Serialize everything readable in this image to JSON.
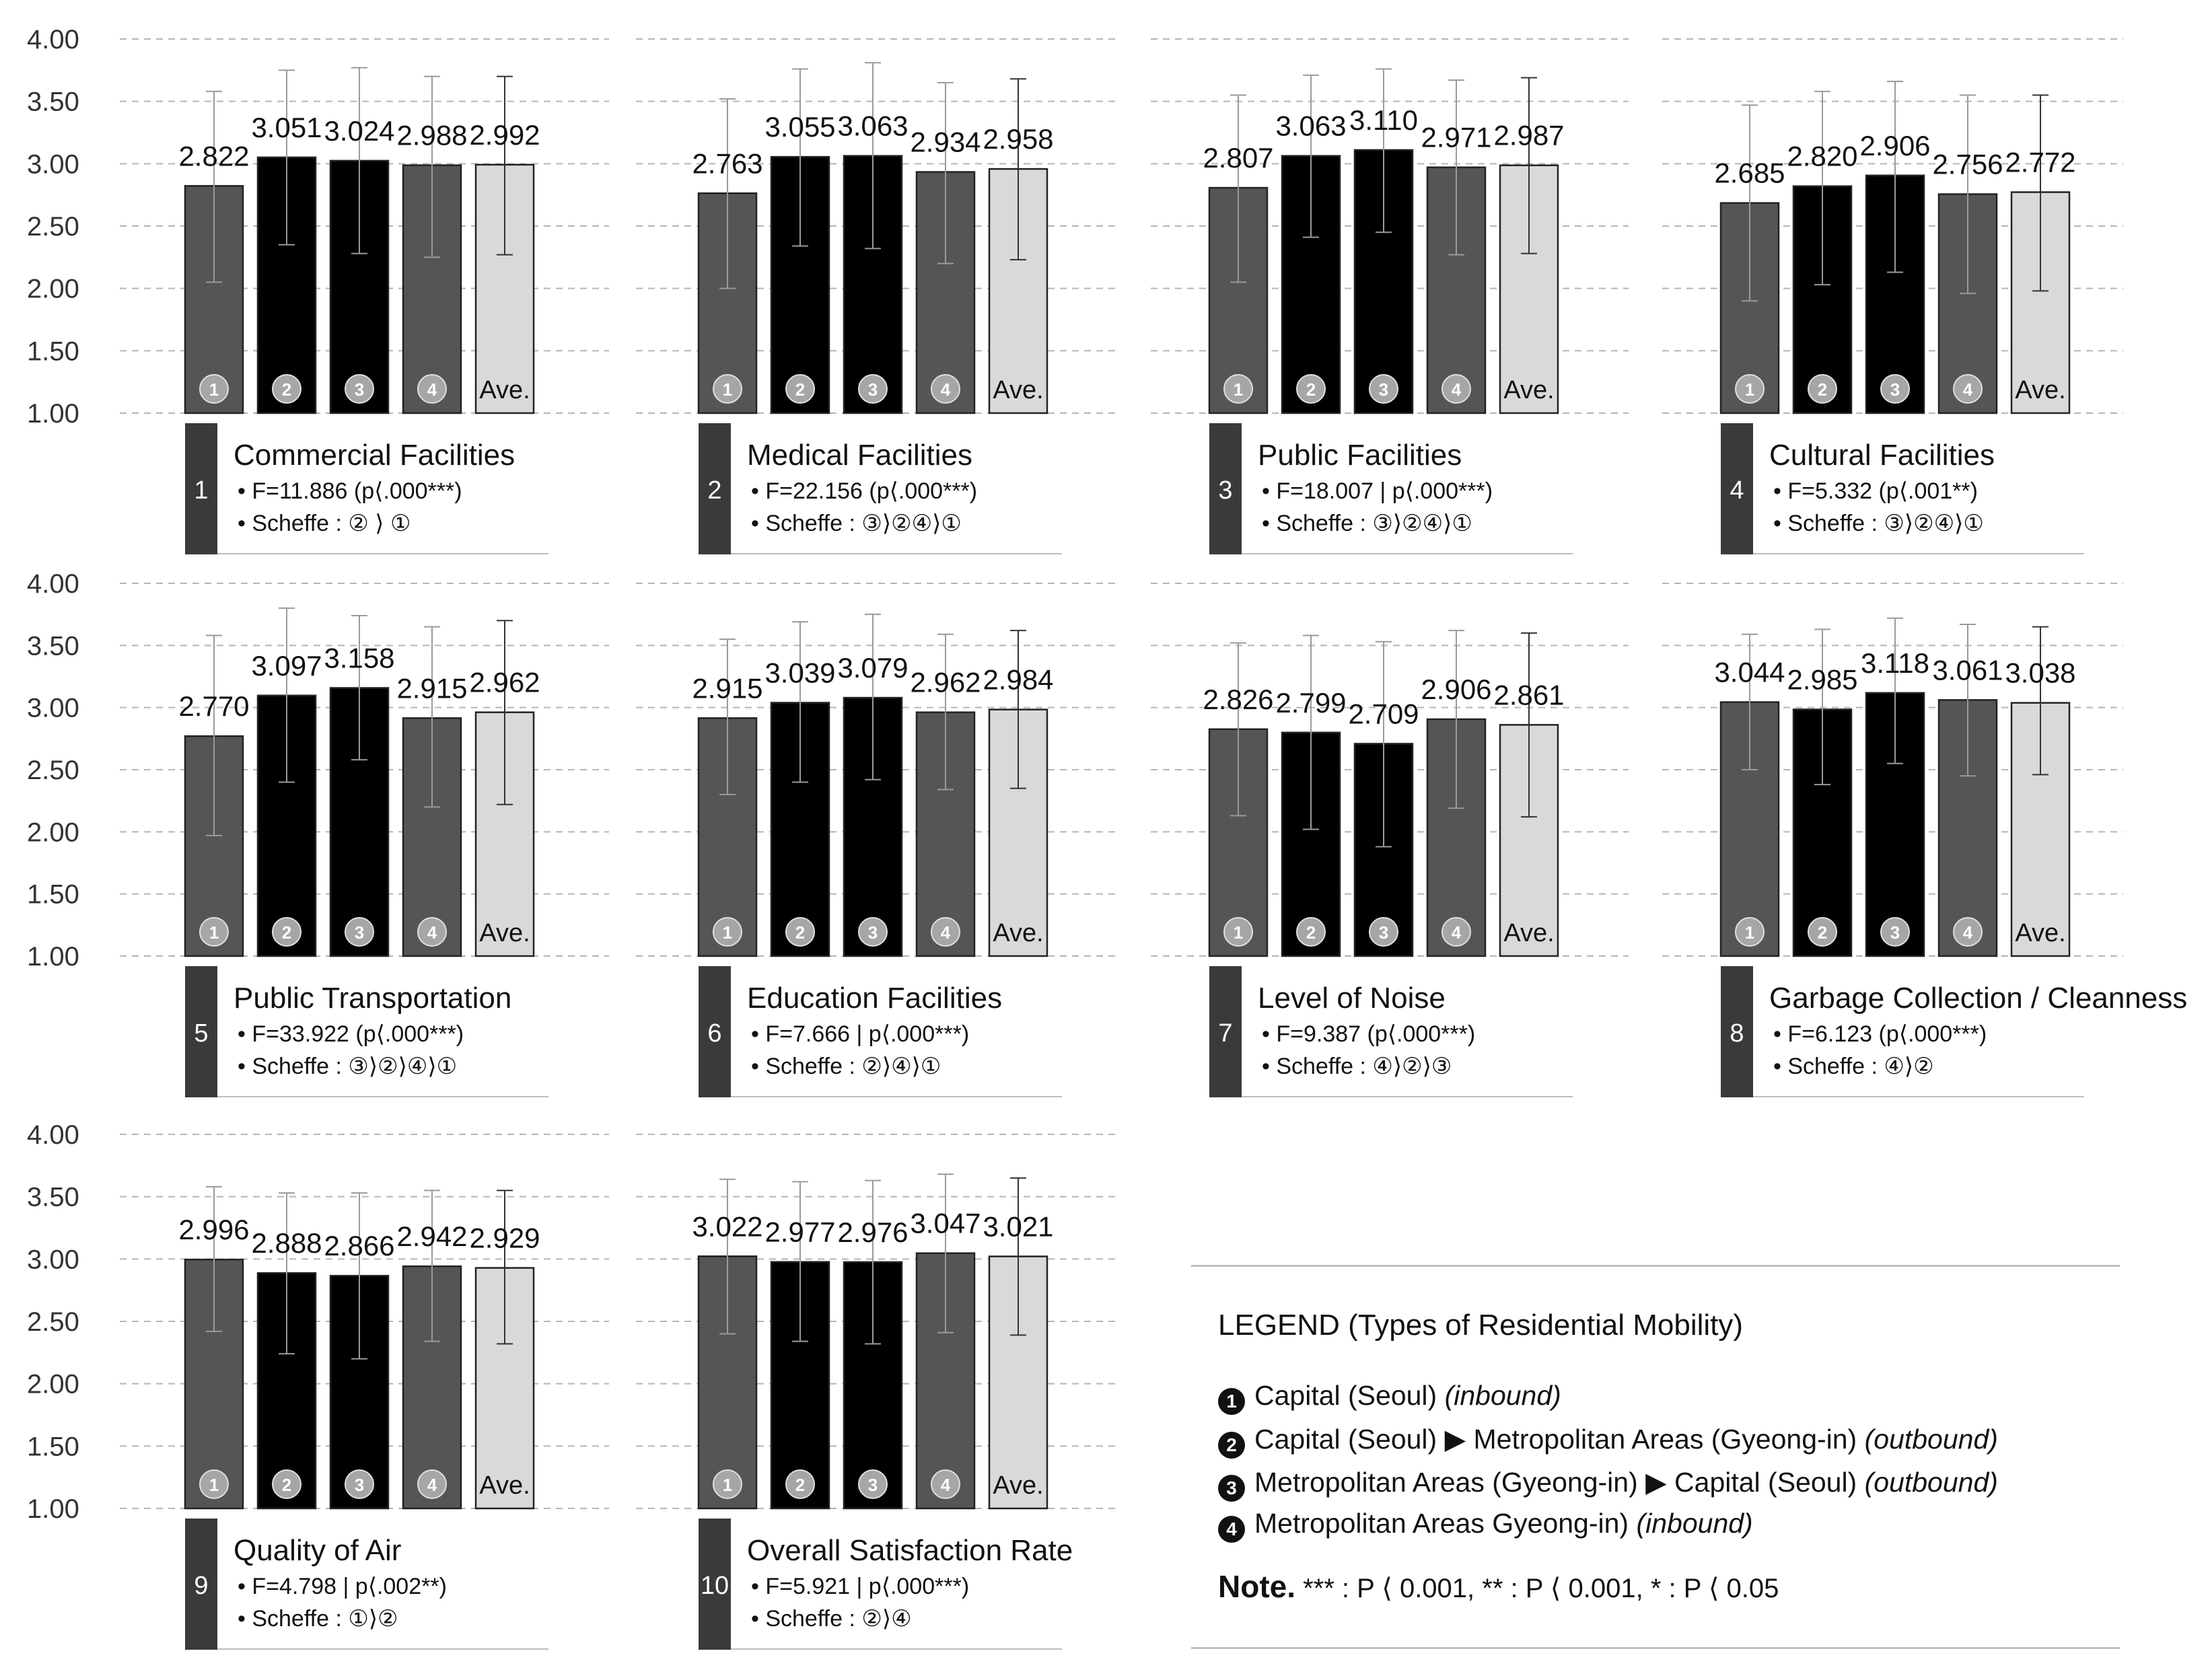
{
  "chart_data": {
    "type": "bar",
    "y_axis": {
      "ylim": [
        1.0,
        4.0
      ],
      "ticks": [
        "4.00",
        "3.50",
        "3.00",
        "2.50",
        "2.00",
        "1.50",
        "1.00"
      ],
      "grid": true
    },
    "category_labels": [
      "①",
      "②",
      "③",
      "④",
      "Ave."
    ],
    "colors": [
      "#555555",
      "#000000",
      "#000000",
      "#555555",
      "#d9d9d9"
    ],
    "panels": [
      {
        "number": "1",
        "title": "Commercial Facilities",
        "stat": "• F=11.886 (p⟨.000***)",
        "scheffe": "• Scheffe : ② ⟩ ①",
        "values": [
          2.822,
          3.051,
          3.024,
          2.988,
          2.992
        ],
        "labels": [
          "2.822",
          "3.051",
          "3.024",
          "2.988",
          "2.992"
        ],
        "err_hi": [
          3.58,
          3.75,
          3.77,
          3.7,
          3.7
        ],
        "err_lo": [
          2.05,
          2.35,
          2.28,
          2.25,
          2.27
        ]
      },
      {
        "number": "2",
        "title": "Medical Facilities",
        "stat": "• F=22.156 (p⟨.000***)",
        "scheffe": "• Scheffe : ③⟩②④⟩①",
        "values": [
          2.763,
          3.055,
          3.063,
          2.934,
          2.958
        ],
        "labels": [
          "2.763",
          "3.055",
          "3.063",
          "2.934",
          "2.958"
        ],
        "err_hi": [
          3.52,
          3.76,
          3.81,
          3.65,
          3.68
        ],
        "err_lo": [
          2.0,
          2.34,
          2.32,
          2.2,
          2.23
        ]
      },
      {
        "number": "3",
        "title": "Public Facilities",
        "stat": "• F=18.007 | p⟨.000***)",
        "scheffe": "• Scheffe : ③⟩②④⟩①",
        "values": [
          2.807,
          3.063,
          3.11,
          2.971,
          2.987
        ],
        "labels": [
          "2.807",
          "3.063",
          "3.110",
          "2.971",
          "2.987"
        ],
        "err_hi": [
          3.55,
          3.71,
          3.76,
          3.67,
          3.69
        ],
        "err_lo": [
          2.05,
          2.41,
          2.45,
          2.27,
          2.28
        ]
      },
      {
        "number": "4",
        "title": "Cultural Facilities",
        "stat": "• F=5.332 (p⟨.001**)",
        "scheffe": "• Scheffe : ③⟩②④⟩①",
        "values": [
          2.685,
          2.82,
          2.906,
          2.756,
          2.772
        ],
        "labels": [
          "2.685",
          "2.820",
          "2.906",
          "2.756",
          "2.772"
        ],
        "err_hi": [
          3.47,
          3.58,
          3.66,
          3.55,
          3.55
        ],
        "err_lo": [
          1.9,
          2.03,
          2.13,
          1.96,
          1.98
        ]
      },
      {
        "number": "5",
        "title": "Public Transportation",
        "stat": "• F=33.922 (p⟨.000***)",
        "scheffe": "• Scheffe : ③⟩②⟩④⟩①",
        "values": [
          2.77,
          3.097,
          3.158,
          2.915,
          2.962
        ],
        "labels": [
          "2.770",
          "3.097",
          "3.158",
          "2.915",
          "2.962"
        ],
        "err_hi": [
          3.58,
          3.8,
          3.74,
          3.65,
          3.7
        ],
        "err_lo": [
          1.97,
          2.4,
          2.58,
          2.2,
          2.22
        ]
      },
      {
        "number": "6",
        "title": "Education Facilities",
        "stat": "• F=7.666 | p⟨.000***)",
        "scheffe": "• Scheffe : ②⟩④⟩①",
        "values": [
          2.915,
          3.039,
          3.079,
          2.962,
          2.984
        ],
        "labels": [
          "2.915",
          "3.039",
          "3.079",
          "2.962",
          "2.984"
        ],
        "err_hi": [
          3.55,
          3.69,
          3.75,
          3.59,
          3.62
        ],
        "err_lo": [
          2.3,
          2.4,
          2.42,
          2.34,
          2.35
        ]
      },
      {
        "number": "7",
        "title": "Level of Noise",
        "stat": "• F=9.387 (p⟨.000***)",
        "scheffe": "• Scheffe : ④⟩②⟩③",
        "values": [
          2.826,
          2.799,
          2.709,
          2.906,
          2.861
        ],
        "labels": [
          "2.826",
          "2.799",
          "2.709",
          "2.906",
          "2.861"
        ],
        "err_hi": [
          3.52,
          3.58,
          3.53,
          3.62,
          3.6
        ],
        "err_lo": [
          2.13,
          2.02,
          1.88,
          2.19,
          2.12
        ]
      },
      {
        "number": "8",
        "title": "Garbage Collection / Cleanness",
        "stat": "• F=6.123 (p⟨.000***)",
        "scheffe": "• Scheffe : ④⟩②",
        "values": [
          3.044,
          2.985,
          3.118,
          3.061,
          3.038
        ],
        "labels": [
          "3.044",
          "2.985",
          "3.118",
          "3.061",
          "3.038"
        ],
        "err_hi": [
          3.59,
          3.63,
          3.72,
          3.67,
          3.65
        ],
        "err_lo": [
          2.5,
          2.38,
          2.55,
          2.45,
          2.46
        ]
      },
      {
        "number": "9",
        "title": "Quality of Air",
        "stat": "• F=4.798 | p⟨.002**)",
        "scheffe": "• Scheffe : ①⟩②",
        "values": [
          2.996,
          2.888,
          2.866,
          2.942,
          2.929
        ],
        "labels": [
          "2.996",
          "2.888",
          "2.866",
          "2.942",
          "2.929"
        ],
        "err_hi": [
          3.58,
          3.53,
          3.53,
          3.55,
          3.55
        ],
        "err_lo": [
          2.42,
          2.24,
          2.2,
          2.34,
          2.32
        ]
      },
      {
        "number": "10",
        "title": "Overall Satisfaction Rate",
        "stat": "• F=5.921 | p⟨.000***)",
        "scheffe": "• Scheffe : ②⟩④",
        "values": [
          3.022,
          2.977,
          2.976,
          3.047,
          3.021
        ],
        "labels": [
          "3.022",
          "2.977",
          "2.976",
          "3.047",
          "3.021"
        ],
        "err_hi": [
          3.64,
          3.62,
          3.63,
          3.68,
          3.65
        ],
        "err_lo": [
          2.4,
          2.34,
          2.32,
          2.41,
          2.39
        ]
      }
    ]
  },
  "legend": {
    "title": "LEGEND (Types of Residential Mobility)",
    "items": [
      {
        "num": "1",
        "text": "Capital (Seoul) ",
        "tag": "(inbound)"
      },
      {
        "num": "2",
        "text": "Capital (Seoul) ▶ Metropolitan Areas (Gyeong-in) ",
        "tag": "(outbound)"
      },
      {
        "num": "3",
        "text": "Metropolitan Areas (Gyeong-in) ▶ Capital (Seoul) ",
        "tag": "(outbound)"
      },
      {
        "num": "4",
        "text": "Metropolitan Areas Gyeong-in) ",
        "tag": "(inbound)"
      }
    ],
    "note_label": "Note.",
    "note_text": " *** : P ⟨ 0.001, ** : P ⟨ 0.001, * : P ⟨ 0.05"
  }
}
